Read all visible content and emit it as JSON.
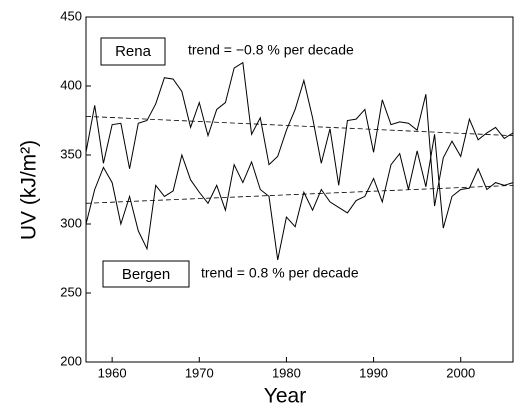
{
  "chart_data": {
    "type": "line",
    "x_label": "Year",
    "y_label": "UV (kJ/m²)",
    "x": [
      1957,
      1958,
      1959,
      1960,
      1961,
      1962,
      1963,
      1964,
      1965,
      1966,
      1967,
      1968,
      1969,
      1970,
      1971,
      1972,
      1973,
      1974,
      1975,
      1976,
      1977,
      1978,
      1979,
      1980,
      1981,
      1982,
      1983,
      1984,
      1985,
      1986,
      1987,
      1988,
      1989,
      1990,
      1991,
      1992,
      1993,
      1994,
      1995,
      1996,
      1997,
      1998,
      1999,
      2000,
      2001,
      2002,
      2003,
      2004,
      2005,
      2006
    ],
    "series": [
      {
        "name": "Rena",
        "color": "#000000",
        "values": [
          352,
          386,
          344,
          372,
          373,
          340,
          373,
          375,
          387,
          406,
          405,
          396,
          370,
          388,
          364,
          383,
          388,
          413,
          417,
          365,
          377,
          343,
          349,
          368,
          383,
          404,
          377,
          344,
          369,
          328,
          375,
          376,
          383,
          352,
          390,
          372,
          374,
          373,
          368,
          394,
          313,
          348,
          360,
          349,
          376,
          361,
          366,
          370,
          362,
          366
        ]
      },
      {
        "name": "Bergen",
        "color": "#000000",
        "values": [
          300,
          325,
          341,
          330,
          300,
          320,
          295,
          282,
          328,
          320,
          324,
          350,
          332,
          323,
          315,
          328,
          310,
          343,
          330,
          345,
          325,
          320,
          274,
          305,
          298,
          323,
          310,
          325,
          316,
          312,
          308,
          317,
          320,
          333,
          316,
          343,
          351,
          325,
          353,
          327,
          365,
          297,
          320,
          325,
          326,
          340,
          325,
          330,
          328,
          330
        ]
      }
    ],
    "trend_lines": [
      {
        "x": [
          1957,
          2006
        ],
        "values": [
          378,
          364
        ]
      },
      {
        "x": [
          1957,
          2006
        ],
        "values": [
          315,
          328
        ]
      }
    ],
    "annotations": [
      "trend = −0.8 % per decade",
      "trend = 0.8 % per decade"
    ],
    "xlim": [
      1957,
      2006
    ],
    "ylim": [
      200,
      450
    ],
    "xticks": [
      1960,
      1970,
      1980,
      1990,
      2000
    ],
    "yticks": [
      200,
      250,
      300,
      350,
      400,
      450
    ],
    "grid": false
  }
}
